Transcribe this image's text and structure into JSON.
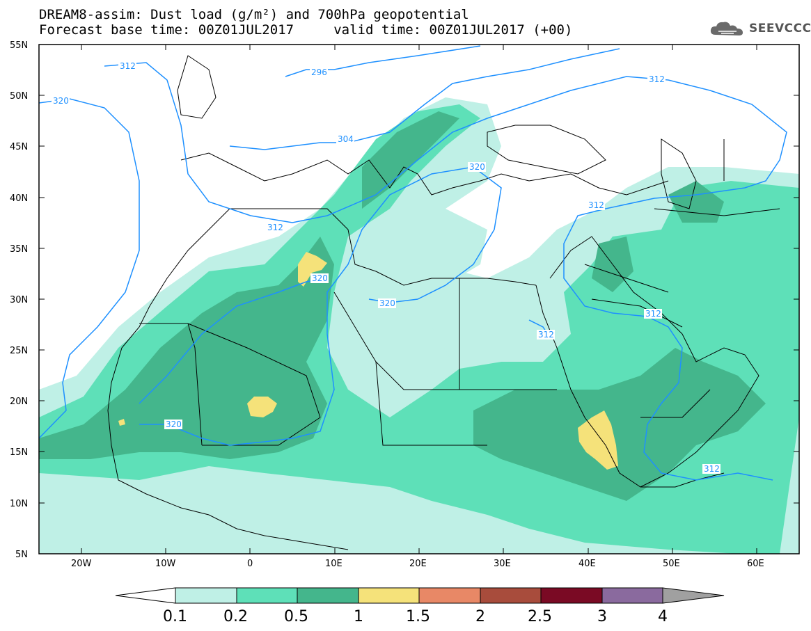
{
  "header": {
    "title_line1": "DREAM8-assim: Dust load (g/m²) and 700hPa geopotential",
    "title_line2": "Forecast base time: 00Z01JUL2017     valid time: 00Z01JUL2017 (+00)",
    "logo_text": "SEEVCCC"
  },
  "map": {
    "lat_labels": [
      "55N",
      "50N",
      "45N",
      "40N",
      "35N",
      "30N",
      "25N",
      "20N",
      "15N",
      "10N",
      "5N"
    ],
    "lon_labels": [
      "20W",
      "10W",
      "0",
      "10E",
      "20E",
      "30E",
      "40E",
      "50E",
      "60E"
    ],
    "contour_labels": [
      "312",
      "320",
      "296",
      "304",
      "312",
      "320",
      "312",
      "312",
      "320",
      "320",
      "320",
      "312",
      "312",
      "312"
    ],
    "contour_color": "#1e90ff"
  },
  "colorbar": {
    "labels": [
      "0.1",
      "0.2",
      "0.5",
      "1",
      "1.5",
      "2",
      "2.5",
      "3",
      "4"
    ],
    "colors": [
      "#bff0e6",
      "#5ee0b8",
      "#44b68c",
      "#f5e27a",
      "#e88866",
      "#a84c3c",
      "#7a0a24",
      "#8a6a9e"
    ],
    "under_color": "#ffffff",
    "over_color": "#a0a0a0"
  }
}
